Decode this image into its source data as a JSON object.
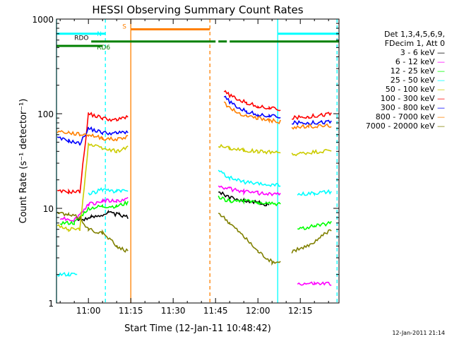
{
  "chart_data": {
    "type": "line",
    "title": "HESSI Observing Summary Count Rates",
    "xlabel": "Start Time (12-Jan-11 10:48:42)",
    "ylabel": "Count Rate (s⁻¹ detector⁻¹)",
    "yscale": "log",
    "ylim": [
      1,
      1000
    ],
    "xlim": [
      "10:48:42",
      "12:28:42"
    ],
    "x_ticks": [
      "11:00",
      "11:15",
      "11:30",
      "11:45",
      "12:00",
      "12:15"
    ],
    "y_ticks": [
      "1",
      "10",
      "100",
      "1000"
    ],
    "timestamp": "12-Jan-2011 21:14",
    "legend": {
      "header": [
        "Det 1,3,4,5,6,9,",
        "FDecim 1, Att 0"
      ],
      "placement": "right"
    },
    "series": [
      {
        "name": "3 - 6 keV",
        "color": "#000000",
        "segments": [
          [
            [
              "10:56",
              7.5
            ],
            [
              "11:01",
              8.0
            ],
            [
              "11:07",
              9.0
            ],
            [
              "11:11",
              8.5
            ],
            [
              "11:14",
              8.0
            ]
          ],
          [
            [
              "11:46",
              15.0
            ],
            [
              "11:50",
              13.0
            ],
            [
              "11:55",
              12.0
            ],
            [
              "12:00",
              11.5
            ],
            [
              "12:03",
              11.0
            ],
            [
              "12:04",
              10.5
            ]
          ]
        ]
      },
      {
        "name": "6 - 12 keV",
        "color": "#ff00ff",
        "segments": [
          [
            [
              "10:50",
              8.0
            ],
            [
              "10:55",
              7.5
            ],
            [
              "11:00",
              11.0
            ],
            [
              "11:05",
              12.0
            ],
            [
              "11:10",
              12.0
            ],
            [
              "11:14",
              12.5
            ]
          ],
          [
            [
              "11:46",
              17.0
            ],
            [
              "11:50",
              16.0
            ],
            [
              "11:55",
              15.0
            ],
            [
              "12:00",
              14.5
            ],
            [
              "12:08",
              14.0
            ]
          ],
          [
            [
              "12:14",
              1.6
            ],
            [
              "12:20",
              1.6
            ],
            [
              "12:26",
              1.6
            ]
          ]
        ]
      },
      {
        "name": "12 - 25 keV",
        "color": "#00ff00",
        "segments": [
          [
            [
              "10:50",
              7.0
            ],
            [
              "10:55",
              7.0
            ],
            [
              "11:00",
              10.0
            ],
            [
              "11:05",
              10.5
            ],
            [
              "11:10",
              10.5
            ],
            [
              "11:14",
              11.5
            ]
          ],
          [
            [
              "11:46",
              13.0
            ],
            [
              "11:50",
              12.0
            ],
            [
              "11:55",
              12.0
            ],
            [
              "12:00",
              11.5
            ],
            [
              "12:08",
              11.0
            ]
          ],
          [
            [
              "12:14",
              6.0
            ],
            [
              "12:20",
              6.5
            ],
            [
              "12:26",
              7.0
            ]
          ]
        ]
      },
      {
        "name": "25 - 50 keV",
        "color": "#00ffff",
        "segments": [
          [
            [
              "10:49",
              2.0
            ],
            [
              "10:53",
              2.0
            ],
            [
              "10:56",
              2.0
            ]
          ],
          [
            [
              "11:00",
              14.0
            ],
            [
              "11:05",
              16.0
            ],
            [
              "11:10",
              15.0
            ],
            [
              "11:14",
              15.5
            ]
          ],
          [
            [
              "11:46",
              25.0
            ],
            [
              "11:50",
              21.0
            ],
            [
              "11:55",
              19.0
            ],
            [
              "12:00",
              18.0
            ],
            [
              "12:08",
              17.5
            ]
          ],
          [
            [
              "12:14",
              14.0
            ],
            [
              "12:20",
              14.5
            ],
            [
              "12:26",
              15.0
            ]
          ]
        ]
      },
      {
        "name": "50 - 100 keV",
        "color": "#cccc00",
        "segments": [
          [
            [
              "10:49",
              6.5
            ],
            [
              "10:53",
              6.0
            ],
            [
              "10:57",
              6.0
            ],
            [
              "11:00",
              48.0
            ],
            [
              "11:05",
              43.0
            ],
            [
              "11:10",
              40.0
            ],
            [
              "11:14",
              45.0
            ]
          ],
          [
            [
              "11:46",
              46.0
            ],
            [
              "11:50",
              43.0
            ],
            [
              "11:55",
              41.0
            ],
            [
              "12:00",
              40.0
            ],
            [
              "12:08",
              39.0
            ]
          ],
          [
            [
              "12:12",
              37.0
            ],
            [
              "12:18",
              39.0
            ],
            [
              "12:26",
              41.0
            ]
          ]
        ]
      },
      {
        "name": "100 - 300 keV",
        "color": "#ff0000",
        "segments": [
          [
            [
              "10:49",
              15.0
            ],
            [
              "10:53",
              15.0
            ],
            [
              "10:57",
              15.0
            ],
            [
              "11:00",
              100.0
            ],
            [
              "11:05",
              90.0
            ],
            [
              "11:10",
              85.0
            ],
            [
              "11:14",
              95.0
            ]
          ],
          [
            [
              "11:48",
              170.0
            ],
            [
              "11:52",
              145.0
            ],
            [
              "11:56",
              130.0
            ],
            [
              "12:00",
              120.0
            ],
            [
              "12:04",
              115.0
            ],
            [
              "12:08",
              110.0
            ]
          ],
          [
            [
              "12:12",
              90.0
            ],
            [
              "12:18",
              93.0
            ],
            [
              "12:26",
              100.0
            ]
          ]
        ]
      },
      {
        "name": "300 - 800 keV",
        "color": "#0000ff",
        "segments": [
          [
            [
              "10:49",
              55.0
            ],
            [
              "10:53",
              52.0
            ],
            [
              "10:57",
              48.0
            ],
            [
              "11:00",
              70.0
            ],
            [
              "11:05",
              63.0
            ],
            [
              "11:10",
              62.0
            ],
            [
              "11:14",
              65.0
            ]
          ],
          [
            [
              "11:48",
              150.0
            ],
            [
              "11:52",
              120.0
            ],
            [
              "11:56",
              105.0
            ],
            [
              "12:00",
              98.0
            ],
            [
              "12:04",
              95.0
            ],
            [
              "12:08",
              92.0
            ]
          ],
          [
            [
              "12:12",
              80.0
            ],
            [
              "12:18",
              80.0
            ],
            [
              "12:26",
              82.0
            ]
          ]
        ]
      },
      {
        "name": "800 - 7000 keV",
        "color": "#ff8000",
        "segments": [
          [
            [
              "10:49",
              65.0
            ],
            [
              "10:53",
              63.0
            ],
            [
              "10:57",
              60.0
            ],
            [
              "11:00",
              60.0
            ],
            [
              "11:05",
              55.0
            ],
            [
              "11:10",
              53.0
            ],
            [
              "11:14",
              58.0
            ]
          ],
          [
            [
              "11:48",
              130.0
            ],
            [
              "11:52",
              105.0
            ],
            [
              "11:56",
              95.0
            ],
            [
              "12:00",
              90.0
            ],
            [
              "12:04",
              85.0
            ],
            [
              "12:08",
              82.0
            ]
          ],
          [
            [
              "12:12",
              72.0
            ],
            [
              "12:18",
              73.0
            ],
            [
              "12:26",
              75.0
            ]
          ]
        ]
      },
      {
        "name": "7000 - 20000 keV",
        "color": "#808000",
        "segments": [
          [
            [
              "10:49",
              9.0
            ],
            [
              "10:53",
              8.5
            ],
            [
              "10:57",
              8.0
            ],
            [
              "11:00",
              6.0
            ],
            [
              "11:05",
              5.5
            ],
            [
              "11:10",
              4.0
            ],
            [
              "11:14",
              3.5
            ]
          ],
          [
            [
              "11:46",
              9.0
            ],
            [
              "11:50",
              7.0
            ],
            [
              "11:55",
              5.0
            ],
            [
              "12:00",
              3.5
            ],
            [
              "12:05",
              2.7
            ],
            [
              "12:08",
              2.7
            ]
          ],
          [
            [
              "12:12",
              3.5
            ],
            [
              "12:18",
              4.0
            ],
            [
              "12:26",
              6.0
            ]
          ]
        ]
      }
    ],
    "flags": [
      {
        "name": "N",
        "color": "#00ffff",
        "y_level": 700,
        "segments": [
          [
            "10:48:42",
            "11:06"
          ],
          [
            "12:07",
            "12:28:42"
          ]
        ]
      },
      {
        "name": "S",
        "color": "#ff8000",
        "y_level": 780,
        "segments": [
          [
            "11:15",
            "11:43"
          ]
        ]
      },
      {
        "name": "RDO",
        "color": "#008000",
        "y_level": 580,
        "segments": [
          [
            "11:01",
            "11:45"
          ],
          [
            "11:46",
            "11:49"
          ],
          [
            "11:50",
            "12:28:42"
          ]
        ]
      },
      {
        "name": "RD6",
        "color": "#008000",
        "y_level": 520,
        "segments": [
          [
            "10:48:42",
            "11:05"
          ]
        ]
      }
    ],
    "vertical_markers": [
      {
        "time": "10:48:42",
        "color": "#00ffff",
        "style": "solid"
      },
      {
        "time": "11:06",
        "color": "#00ffff",
        "style": "dashed"
      },
      {
        "time": "11:15",
        "color": "#ff8000",
        "style": "solid"
      },
      {
        "time": "11:43",
        "color": "#ff8000",
        "style": "dashed"
      },
      {
        "time": "12:07",
        "color": "#00ffff",
        "style": "solid"
      },
      {
        "time": "12:28",
        "color": "#00ffff",
        "style": "dashed"
      }
    ]
  }
}
